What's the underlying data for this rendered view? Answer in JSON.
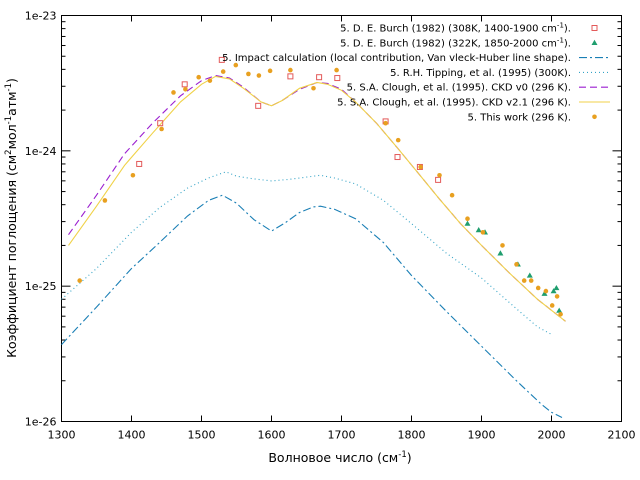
{
  "chart_data": {
    "type": "scatter",
    "xlabel": "Волновое число (см",
    "xlabel_sup": "-1",
    "xlabel_end": ")",
    "ylabel_parts": [
      "Коэффициент поглощения (см",
      "2",
      "мол",
      "-1",
      "атм",
      "-1",
      ")"
    ],
    "x_ticks": [
      "1300",
      "1400",
      "1500",
      "1600",
      "1700",
      "1800",
      "1900",
      "2000",
      "2100"
    ],
    "y_ticks": [
      {
        "mant": "1e",
        "exp": "-26",
        "value": 1e-26
      },
      {
        "mant": "1e",
        "exp": "-25",
        "value": 1e-25
      },
      {
        "mant": "1e",
        "exp": "-24",
        "value": 1e-24
      },
      {
        "mant": "1e",
        "exp": "-23",
        "value": 1e-23
      }
    ],
    "xlim": [
      1300,
      2100
    ],
    "ylim": [
      1e-26,
      1e-23
    ],
    "y_scale": "log",
    "grid": false,
    "legend_position": "top-right",
    "series": [
      {
        "name": "5. D. E. Burch (1982) (308K, 1400-1900 cm",
        "name_sup": "-1",
        "name_end": ").",
        "kind": "points",
        "marker": "square",
        "color": "#e35a5a",
        "x": [
          1411,
          1441,
          1476,
          1529,
          1581,
          1627,
          1668,
          1694,
          1763,
          1780,
          1812,
          1838
        ],
        "y": [
          8e-25,
          1.6e-24,
          3.1e-24,
          4.7e-24,
          2.15e-24,
          3.55e-24,
          3.5e-24,
          3.45e-24,
          1.65e-24,
          9e-25,
          7.6e-25,
          6.1e-25
        ]
      },
      {
        "name": "5. D. E. Burch (1982) (322K, 1850-2000 cm",
        "name_sup": "-1",
        "name_end": ").",
        "kind": "points",
        "marker": "triangle",
        "color": "#1f9e6e",
        "x": [
          1880,
          1896,
          1905,
          1927,
          1952,
          1969,
          1990,
          2003,
          2007,
          2011
        ],
        "y": [
          2.9e-25,
          2.6e-25,
          2.5e-25,
          1.75e-25,
          1.45e-25,
          1.2e-25,
          8.8e-26,
          9.2e-26,
          9.7e-26,
          6.6e-26
        ]
      },
      {
        "name": "5. Impact calculation  (local contribution, Van vleck-Huber line shape).",
        "kind": "line",
        "dash": "8 3 2 3",
        "color": "#1a7fb5",
        "x": [
          1300,
          1350,
          1400,
          1440,
          1480,
          1510,
          1530,
          1550,
          1575,
          1600,
          1620,
          1640,
          1660,
          1670,
          1690,
          1720,
          1760,
          1800,
          1850,
          1900,
          1950,
          1985,
          2000,
          2015
        ],
        "y": [
          3.7e-26,
          7e-26,
          1.35e-25,
          2.1e-25,
          3.3e-25,
          4.3e-25,
          4.7e-25,
          4.1e-25,
          3.1e-25,
          2.55e-25,
          2.95e-25,
          3.5e-25,
          3.85e-25,
          3.9e-25,
          3.7e-25,
          3.15e-25,
          2.1e-25,
          1.2e-25,
          6.5e-26,
          3.6e-26,
          2e-26,
          1.35e-26,
          1.17e-26,
          1.07e-26
        ]
      },
      {
        "name": "5. R.H. Tipping, et al. (1995) (300K).",
        "kind": "line",
        "dash": "1 3",
        "color": "#33a3c6",
        "x": [
          1300,
          1350,
          1400,
          1440,
          1480,
          1510,
          1535,
          1550,
          1575,
          1600,
          1625,
          1650,
          1670,
          1690,
          1720,
          1760,
          1800,
          1850,
          1900,
          1950,
          1980,
          2000
        ],
        "y": [
          8e-26,
          1.35e-25,
          2.5e-25,
          3.8e-25,
          5.3e-25,
          6.3e-25,
          7e-25,
          6.5e-25,
          6.2e-25,
          6e-25,
          6.15e-25,
          6.4e-25,
          6.6e-25,
          6.3e-25,
          5.7e-25,
          4.3e-25,
          2.9e-25,
          1.75e-25,
          1.15e-25,
          6.8e-26,
          5e-26,
          4.4e-26
        ]
      },
      {
        "name": "5. S.A. Clough, et al. (1995). CKD v0 (296 K).",
        "kind": "line",
        "dash": "7 4",
        "color": "#9b1fd0",
        "x": [
          1310,
          1350,
          1390,
          1430,
          1470,
          1500,
          1520,
          1540,
          1560,
          1585,
          1600,
          1615,
          1640,
          1665,
          1680,
          1700,
          1720,
          1750,
          1780,
          1810,
          1840,
          1870,
          1900,
          1940,
          1980,
          2020
        ],
        "y": [
          2.4e-25,
          4.7e-25,
          9.5e-25,
          1.6e-24,
          2.55e-24,
          3.3e-24,
          3.6e-24,
          3.45e-24,
          2.95e-24,
          2.3e-24,
          2.15e-24,
          2.35e-24,
          2.85e-24,
          3.2e-24,
          3.15e-24,
          2.85e-24,
          2.3e-24,
          1.6e-24,
          1.05e-24,
          6.8e-25,
          4.4e-25,
          2.9e-25,
          2e-25,
          1.25e-25,
          8e-26,
          5.5e-26
        ]
      },
      {
        "name": "5. S.A. Clough, et al. (1995). CKD v2.1 (296 K).",
        "kind": "line",
        "dash": "",
        "color": "#f0d248",
        "x": [
          1310,
          1350,
          1390,
          1430,
          1470,
          1500,
          1520,
          1540,
          1560,
          1585,
          1600,
          1615,
          1640,
          1665,
          1680,
          1700,
          1720,
          1750,
          1780,
          1810,
          1840,
          1870,
          1900,
          1940,
          1980,
          2020
        ],
        "y": [
          2e-25,
          3.9e-25,
          7.8e-25,
          1.35e-24,
          2.3e-24,
          3.1e-24,
          3.55e-24,
          3.4e-24,
          2.9e-24,
          2.3e-24,
          2.15e-24,
          2.35e-24,
          2.9e-24,
          3.2e-24,
          3.1e-24,
          2.8e-24,
          2.3e-24,
          1.6e-24,
          1.05e-24,
          6.8e-25,
          4.4e-25,
          2.9e-25,
          2e-25,
          1.25e-25,
          8e-26,
          5.5e-26
        ]
      },
      {
        "name": "5. This work (296 K).",
        "kind": "points",
        "marker": "circle",
        "color": "#e8a020",
        "x": [
          1326,
          1362,
          1402,
          1443,
          1460,
          1477,
          1496,
          1512,
          1531,
          1549,
          1567,
          1582,
          1598,
          1627,
          1660,
          1693,
          1763,
          1781,
          1813,
          1840,
          1858,
          1880,
          1902,
          1930,
          1950,
          1961,
          1971,
          1981,
          1992,
          2001,
          2008,
          2013
        ],
        "y": [
          1.1e-25,
          4.3e-25,
          6.6e-25,
          1.45e-24,
          2.7e-24,
          2.85e-24,
          3.5e-24,
          3.3e-24,
          3.85e-24,
          4.3e-24,
          3.7e-24,
          3.6e-24,
          3.9e-24,
          3.95e-24,
          2.9e-24,
          3.95e-24,
          1.6e-24,
          1.2e-24,
          7.6e-25,
          6.6e-25,
          4.7e-25,
          3.15e-25,
          2.5e-25,
          2e-25,
          1.45e-25,
          1.1e-25,
          1.1e-25,
          9.7e-26,
          9.2e-26,
          7.2e-26,
          8.4e-26,
          6.2e-26
        ]
      }
    ]
  }
}
